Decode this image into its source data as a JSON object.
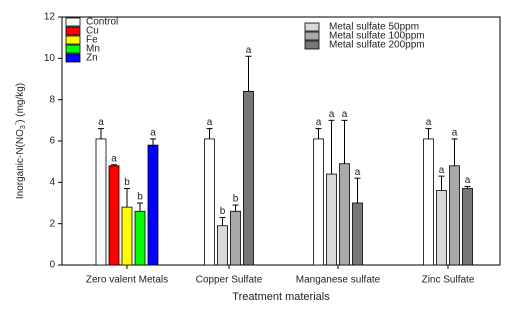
{
  "chart_data": {
    "type": "bar",
    "xlabel": "Treatment materials",
    "ylabel": [
      "Inorganic-N(NO",
      "3",
      "-",
      ") (mg/kg)"
    ],
    "categories": [
      "Zero valent Metals",
      "Copper Sulfate",
      "Manganese sulfate",
      "Zinc Sulfate"
    ],
    "ylim": [
      0,
      12
    ],
    "yticks": [
      0,
      2,
      4,
      6,
      8,
      10,
      12
    ],
    "series": [
      {
        "name": "Control",
        "color": "#ffffff",
        "values": [
          6.1,
          6.1,
          6.1,
          6.1
        ],
        "errors": [
          0.5,
          0.5,
          0.5,
          0.5
        ],
        "letters": [
          "a",
          "a",
          "a",
          "a"
        ]
      },
      {
        "name": "Cu",
        "color": "#ff0000",
        "values": [
          4.8,
          null,
          null,
          null
        ],
        "errors": [
          0.05,
          null,
          null,
          null
        ],
        "letters": [
          "a",
          null,
          null,
          null
        ]
      },
      {
        "name": "Fe",
        "color": "#ffff00",
        "values": [
          2.8,
          null,
          null,
          null
        ],
        "errors": [
          0.9,
          null,
          null,
          null
        ],
        "letters": [
          "b",
          null,
          null,
          null
        ]
      },
      {
        "name": "Mn",
        "color": "#00ff00",
        "values": [
          2.6,
          null,
          null,
          null
        ],
        "errors": [
          0.4,
          null,
          null,
          null
        ],
        "letters": [
          "b",
          null,
          null,
          null
        ]
      },
      {
        "name": "Zn",
        "color": "#0000ff",
        "values": [
          5.8,
          null,
          null,
          null
        ],
        "errors": [
          0.3,
          null,
          null,
          null
        ],
        "letters": [
          "a",
          null,
          null,
          null
        ]
      },
      {
        "name": "Metal sulfate 50ppm",
        "color": "#d9d9d9",
        "values": [
          null,
          1.9,
          4.4,
          3.6
        ],
        "errors": [
          null,
          0.4,
          2.6,
          0.7
        ],
        "letters": [
          null,
          "b",
          "a",
          "a"
        ]
      },
      {
        "name": "Metal sulfate 100ppm",
        "color": "#a9a9a9",
        "values": [
          null,
          2.6,
          4.9,
          4.8
        ],
        "errors": [
          null,
          0.3,
          2.1,
          1.3
        ],
        "letters": [
          null,
          "b",
          "a",
          "a"
        ]
      },
      {
        "name": "Metal sulfate 200ppm",
        "color": "#777777",
        "values": [
          null,
          8.4,
          3.0,
          3.7
        ],
        "errors": [
          null,
          1.7,
          1.2,
          0.1
        ],
        "letters": [
          null,
          "a",
          "a",
          "a"
        ]
      }
    ]
  }
}
